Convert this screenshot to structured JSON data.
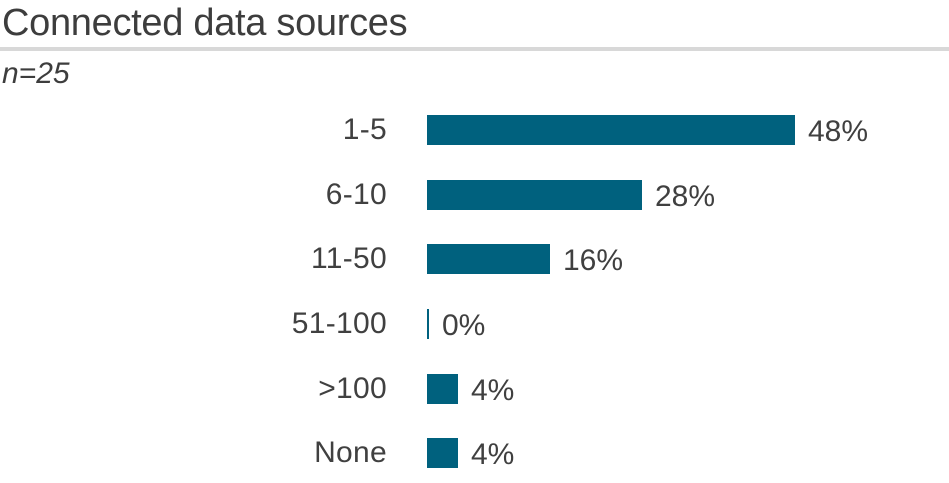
{
  "header": {
    "title": "Connected data sources",
    "sample_size": "n=25"
  },
  "chart_data": {
    "type": "bar",
    "orientation": "horizontal",
    "title": "Connected data sources",
    "subtitle": "n=25",
    "categories": [
      "1-5",
      "6-10",
      "11-50",
      "51-100",
      ">100",
      "None"
    ],
    "values": [
      48,
      28,
      16,
      0,
      4,
      4
    ],
    "value_labels": [
      "48%",
      "28%",
      "16%",
      "0%",
      "4%",
      "4%"
    ],
    "unit": "%",
    "xlim": [
      0,
      48
    ],
    "grid": false,
    "legend": "none",
    "value_labels_position": "right-of-bar",
    "bar_color": "#00617e"
  },
  "colors": {
    "bar": "#00617e",
    "text": "#404040",
    "title_text": "#3d3d3d",
    "divider": "#d8d8d8",
    "background": "#ffffff"
  }
}
